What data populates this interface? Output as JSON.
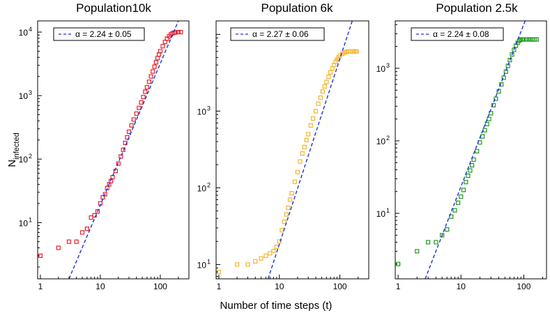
{
  "figure": {
    "xlabel": "Number of time steps (t)",
    "ylabel_main": "N",
    "ylabel_sub": "infected"
  },
  "chart_data": [
    {
      "type": "scatter",
      "title": "Population10k",
      "xscale": "log",
      "yscale": "log",
      "xlim": [
        0.9,
        300
      ],
      "ylim": [
        1.3,
        15000
      ],
      "xticks": [
        1,
        10,
        100
      ],
      "xtick_labels": [
        "1",
        "10",
        "100"
      ],
      "yticks": [
        10,
        100,
        1000,
        10000
      ],
      "ytick_labels": [
        {
          "base": "10",
          "exp": "1"
        },
        {
          "base": "10",
          "exp": "2"
        },
        {
          "base": "10",
          "exp": "3"
        },
        {
          "base": "10",
          "exp": "4"
        }
      ],
      "marker_color": "#e8202a",
      "legend": {
        "label": "α = 2.24 ± 0.05",
        "location": "top-left"
      },
      "fit_line": {
        "alpha": 2.24,
        "alpha_err": 0.05,
        "x": [
          3,
          200
        ],
        "y": [
          1.3,
          15000
        ],
        "color": "#1f2fd6",
        "style": "dashed"
      },
      "series": [
        {
          "name": "data",
          "x": [
            1,
            2,
            3,
            4,
            5,
            6,
            7,
            8,
            9,
            10,
            11,
            12,
            13,
            14,
            15,
            16,
            18,
            20,
            22,
            24,
            26,
            28,
            30,
            33,
            36,
            40,
            44,
            48,
            52,
            56,
            60,
            65,
            70,
            75,
            80,
            85,
            90,
            95,
            100,
            110,
            120,
            130,
            140,
            150,
            160,
            170,
            180,
            200,
            220
          ],
          "y": [
            3,
            4,
            5,
            5,
            7,
            8,
            12,
            13,
            15,
            20,
            25,
            28,
            35,
            40,
            45,
            52,
            65,
            85,
            110,
            140,
            180,
            220,
            270,
            340,
            420,
            520,
            640,
            780,
            950,
            1150,
            1350,
            1650,
            2000,
            2400,
            2850,
            3350,
            3900,
            4450,
            5000,
            6000,
            7000,
            7900,
            8600,
            9200,
            9600,
            9800,
            9900,
            10000,
            10000
          ]
        }
      ]
    },
    {
      "type": "scatter",
      "title": "Population 6k",
      "xscale": "log",
      "yscale": "log",
      "xlim": [
        0.9,
        300
      ],
      "ylim": [
        6.5,
        15000
      ],
      "xticks": [
        1,
        10,
        100
      ],
      "xtick_labels": [
        "1",
        "10",
        "100"
      ],
      "yticks": [
        10,
        100,
        1000
      ],
      "ytick_labels": [
        {
          "base": "10",
          "exp": "1"
        },
        {
          "base": "10",
          "exp": "2"
        },
        {
          "base": "10",
          "exp": "3"
        }
      ],
      "marker_color": "#f5b52b",
      "legend": {
        "label": "α = 2.27 ± 0.06",
        "location": "top-left"
      },
      "fit_line": {
        "alpha": 2.27,
        "alpha_err": 0.06,
        "x": [
          6.5,
          160
        ],
        "y": [
          6.5,
          15000
        ],
        "color": "#1f2fd6",
        "style": "dashed"
      },
      "series": [
        {
          "name": "data",
          "x": [
            1,
            2,
            3,
            4,
            5,
            6,
            7,
            8,
            9,
            10,
            11,
            12,
            13,
            14,
            15,
            16,
            18,
            20,
            22,
            24,
            26,
            28,
            30,
            33,
            36,
            40,
            44,
            48,
            52,
            56,
            60,
            65,
            70,
            75,
            80,
            85,
            90,
            95,
            100,
            110,
            120,
            130,
            140,
            150,
            160,
            170,
            180,
            190
          ],
          "y": [
            8,
            10,
            10,
            11,
            12,
            13,
            14,
            15,
            17,
            20,
            28,
            36,
            45,
            55,
            70,
            85,
            120,
            160,
            220,
            280,
            340,
            420,
            500,
            650,
            800,
            1000,
            1250,
            1500,
            1800,
            2100,
            2400,
            2800,
            3200,
            3600,
            4000,
            4400,
            4700,
            5000,
            5300,
            5600,
            5800,
            5950,
            6000,
            6000,
            6000,
            6000,
            6000,
            6000
          ]
        }
      ]
    },
    {
      "type": "scatter",
      "title": "Population 2.5k",
      "xscale": "log",
      "yscale": "log",
      "xlim": [
        0.9,
        230
      ],
      "ylim": [
        1.25,
        4500
      ],
      "xticks": [
        1,
        10,
        100
      ],
      "xtick_labels": [
        "1",
        "10",
        "100"
      ],
      "yticks": [
        10,
        100,
        1000
      ],
      "ytick_labels": [
        {
          "base": "10",
          "exp": "1"
        },
        {
          "base": "10",
          "exp": "2"
        },
        {
          "base": "10",
          "exp": "3"
        }
      ],
      "marker_color": "#1f9a1f",
      "legend": {
        "label": "α = 2.24 ± 0.08",
        "location": "top-left"
      },
      "fit_line": {
        "alpha": 2.24,
        "alpha_err": 0.08,
        "x": [
          2.7,
          105
        ],
        "y": [
          1.25,
          4500
        ],
        "color": "#1f2fd6",
        "style": "dashed"
      },
      "series": [
        {
          "name": "data",
          "x": [
            1,
            2,
            3,
            4,
            5,
            6,
            7,
            8,
            9,
            10,
            11,
            12,
            13,
            14,
            15,
            16,
            18,
            20,
            22,
            24,
            26,
            28,
            30,
            33,
            36,
            40,
            44,
            48,
            52,
            56,
            60,
            65,
            70,
            75,
            80,
            85,
            90,
            95,
            100,
            110,
            120,
            130,
            140,
            150,
            160
          ],
          "y": [
            2,
            3,
            4,
            4,
            5,
            6,
            9,
            11,
            14,
            17,
            21,
            27,
            33,
            39,
            46,
            55,
            72,
            95,
            115,
            140,
            170,
            200,
            240,
            310,
            380,
            480,
            600,
            740,
            900,
            1080,
            1300,
            1550,
            1800,
            2050,
            2250,
            2400,
            2480,
            2500,
            2500,
            2500,
            2500,
            2500,
            2500,
            2500,
            2500
          ]
        }
      ]
    }
  ]
}
